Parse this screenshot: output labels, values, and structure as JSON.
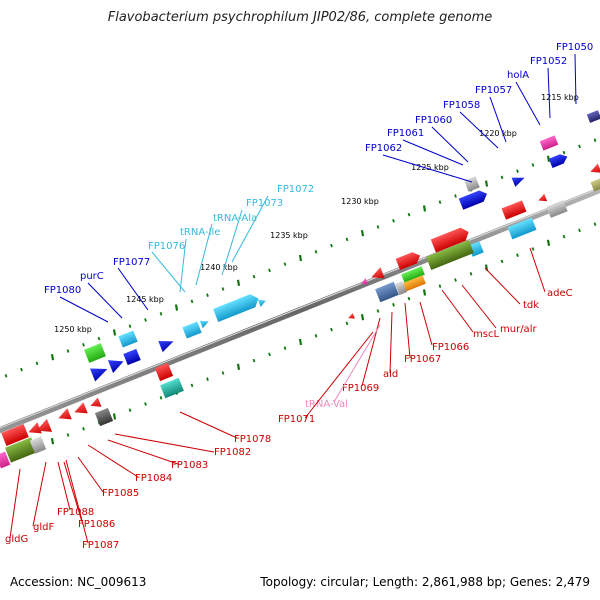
{
  "header": {
    "title": "Flavobacterium psychrophilum JIP02/86, complete genome"
  },
  "footer": {
    "accession": "Accession: NC_009613",
    "summary": "Topology: circular; Length: 2,861,988 bp; Genes: 2,479"
  },
  "colors": {
    "forward_label": "#0000cc",
    "rna_label": "#33bbdd",
    "reverse_label": "#cc0000",
    "reverse_rna_label": "#ee88bb",
    "backbone": "#888888",
    "tick": "#117711"
  },
  "scale_ticks": [
    {
      "kbp": 1215,
      "label": "1215 kbp"
    },
    {
      "kbp": 1220,
      "label": "1220 kbp"
    },
    {
      "kbp": 1225,
      "label": "1225 kbp"
    },
    {
      "kbp": 1230,
      "label": "1230 kbp"
    },
    {
      "kbp": 1235,
      "label": "1235 kbp"
    },
    {
      "kbp": 1240,
      "label": "1240 kbp"
    },
    {
      "kbp": 1245,
      "label": "1245 kbp"
    },
    {
      "kbp": 1250,
      "label": "1250 kbp"
    }
  ],
  "forward_labels": [
    {
      "text": "FP1050",
      "kind": "cds"
    },
    {
      "text": "FP1052",
      "kind": "cds"
    },
    {
      "text": "holA",
      "kind": "cds"
    },
    {
      "text": "FP1057",
      "kind": "cds"
    },
    {
      "text": "FP1058",
      "kind": "cds"
    },
    {
      "text": "FP1060",
      "kind": "cds"
    },
    {
      "text": "FP1061",
      "kind": "cds"
    },
    {
      "text": "FP1062",
      "kind": "cds"
    },
    {
      "text": "FP1072",
      "kind": "rna"
    },
    {
      "text": "FP1073",
      "kind": "rna"
    },
    {
      "text": "tRNA-Ala",
      "kind": "rna"
    },
    {
      "text": "tRNA-Ile",
      "kind": "rna"
    },
    {
      "text": "FP1076",
      "kind": "rna"
    },
    {
      "text": "FP1077",
      "kind": "cds"
    },
    {
      "text": "purC",
      "kind": "cds"
    },
    {
      "text": "FP1080",
      "kind": "cds"
    }
  ],
  "reverse_labels": [
    {
      "text": "adeC",
      "kind": "cds"
    },
    {
      "text": "tdk",
      "kind": "cds"
    },
    {
      "text": "mur/alr",
      "kind": "cds"
    },
    {
      "text": "mscL",
      "kind": "cds"
    },
    {
      "text": "FP1066",
      "kind": "cds"
    },
    {
      "text": "FP1067",
      "kind": "cds"
    },
    {
      "text": "ald",
      "kind": "cds"
    },
    {
      "text": "FP1069",
      "kind": "cds"
    },
    {
      "text": "tRNA-Val",
      "kind": "rna"
    },
    {
      "text": "FP1071",
      "kind": "cds"
    },
    {
      "text": "FP1078",
      "kind": "cds"
    },
    {
      "text": "FP1082",
      "kind": "cds"
    },
    {
      "text": "FP1083",
      "kind": "cds"
    },
    {
      "text": "FP1084",
      "kind": "cds"
    },
    {
      "text": "FP1085",
      "kind": "cds"
    },
    {
      "text": "FP1088",
      "kind": "cds"
    },
    {
      "text": "FP1086",
      "kind": "cds"
    },
    {
      "text": "FP1087",
      "kind": "cds"
    },
    {
      "text": "gldF",
      "kind": "cds"
    },
    {
      "text": "gldG",
      "kind": "cds"
    }
  ]
}
